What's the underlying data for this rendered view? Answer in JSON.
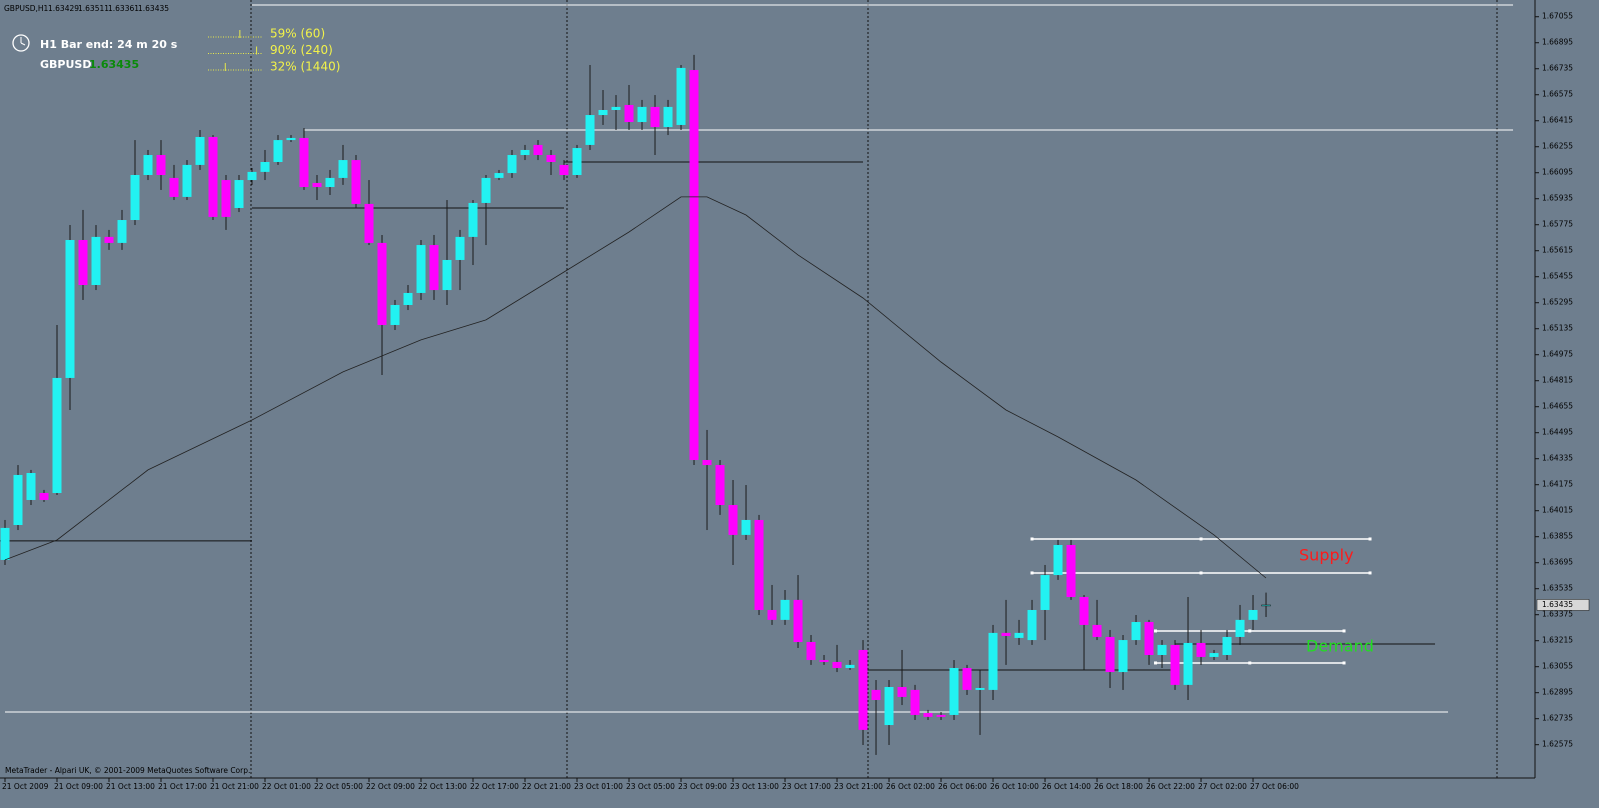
{
  "header": {
    "symbol": "GBPUSD,H1"
  },
  "panel": {
    "bar_end": "H1 Bar end: 24 m 20 s",
    "symbol": "GBPUSD",
    "progress": [
      {
        "value": 59,
        "label": "59% (60)"
      },
      {
        "value": 90,
        "label": "90% (240)"
      },
      {
        "value": 32,
        "label": "32% (1440)"
      }
    ]
  },
  "footer": "MetaTrader - Alpari UK, © 2001-2009 MetaQuotes Software Corp.",
  "chart_data": {
    "type": "candlestick",
    "up_color": "#22f2f2",
    "down_color": "#ff00ff",
    "wick_color": "#1a1a1a",
    "open": [
      1.63712,
      1.63927,
      1.64081,
      1.64124,
      1.64124,
      1.64832,
      1.65681,
      1.65404,
      1.657,
      1.65663,
      1.65804,
      1.66081,
      1.66204,
      1.66063,
      1.65946,
      1.66143,
      1.66315,
      1.6605,
      1.65878,
      1.6605,
      1.661,
      1.66161,
      1.66296,
      1.66309,
      1.66032,
      1.66007,
      1.66063,
      1.66173,
      1.65903,
      1.65663,
      1.65158,
      1.65281,
      1.65355,
      1.6565,
      1.65373,
      1.65558,
      1.657,
      1.65909,
      1.66063,
      1.66093,
      1.66204,
      1.66266,
      1.66204,
      1.66143,
      1.66081,
      1.66266,
      1.6645,
      1.66481,
      1.66512,
      1.66407,
      1.665,
      1.66376,
      1.66389,
      1.66727,
      1.64327,
      1.64296,
      1.6405,
      1.63866,
      1.63958,
      1.63404,
      1.63343,
      1.63466,
      1.63207,
      1.63096,
      1.63084,
      1.63047,
      1.63158,
      1.62912,
      1.62696,
      1.6293,
      1.62912,
      1.6277,
      1.62758,
      1.62758,
      1.63047,
      1.62912,
      1.62912,
      1.63263,
      1.63232,
      1.63219,
      1.63404,
      1.63619,
      1.63804,
      1.63484,
      1.63312,
      1.63238,
      1.63022,
      1.63219,
      1.6333,
      1.63127,
      1.63189,
      1.62943,
      1.63201,
      1.63115,
      1.63127,
      1.63238,
      1.63343,
      1.63429
    ],
    "high": [
      1.63958,
      1.64296,
      1.64266,
      1.64143,
      1.65158,
      1.65773,
      1.65866,
      1.65773,
      1.65743,
      1.65866,
      1.66296,
      1.66235,
      1.66296,
      1.66143,
      1.66173,
      1.66358,
      1.66327,
      1.66081,
      1.66081,
      1.66124,
      1.66235,
      1.66327,
      1.66327,
      1.6637,
      1.66081,
      1.66112,
      1.66266,
      1.66204,
      1.6605,
      1.65712,
      1.65312,
      1.65404,
      1.65681,
      1.65712,
      1.65927,
      1.65743,
      1.65927,
      1.66081,
      1.66112,
      1.66235,
      1.66266,
      1.66296,
      1.66235,
      1.66173,
      1.66266,
      1.66758,
      1.66604,
      1.66573,
      1.66635,
      1.66543,
      1.66573,
      1.66543,
      1.66758,
      1.6682,
      1.64512,
      1.64327,
      1.64204,
      1.64173,
      1.63989,
      1.63558,
      1.63527,
      1.63619,
      1.6325,
      1.63127,
      1.63189,
      1.63096,
      1.63219,
      1.62973,
      1.62973,
      1.63158,
      1.62943,
      1.62789,
      1.62776,
      1.63096,
      1.63066,
      1.63035,
      1.63312,
      1.63466,
      1.63343,
      1.63466,
      1.63681,
      1.63835,
      1.63835,
      1.63496,
      1.63466,
      1.63281,
      1.6325,
      1.63373,
      1.63343,
      1.63219,
      1.63219,
      1.63484,
      1.63281,
      1.63158,
      1.63281,
      1.63435,
      1.63496,
      1.63511
    ],
    "low": [
      1.63681,
      1.63896,
      1.6405,
      1.64069,
      1.64112,
      1.64635,
      1.65312,
      1.65373,
      1.6562,
      1.6562,
      1.65773,
      1.6605,
      1.65989,
      1.65927,
      1.65927,
      1.66112,
      1.65804,
      1.65743,
      1.65853,
      1.6602,
      1.6605,
      1.66143,
      1.66284,
      1.65989,
      1.65927,
      1.65958,
      1.6602,
      1.65878,
      1.6565,
      1.6485,
      1.65127,
      1.6525,
      1.65312,
      1.65312,
      1.65281,
      1.65373,
      1.65527,
      1.6565,
      1.6605,
      1.66063,
      1.66173,
      1.66173,
      1.66081,
      1.6605,
      1.66063,
      1.66235,
      1.66389,
      1.66358,
      1.66358,
      1.66358,
      1.66204,
      1.66327,
      1.66358,
      1.64296,
      1.63896,
      1.63989,
      1.63681,
      1.63835,
      1.63373,
      1.63312,
      1.63312,
      1.6317,
      1.63066,
      1.63066,
      1.63022,
      1.63035,
      1.62573,
      1.62512,
      1.62573,
      1.62819,
      1.62727,
      1.62727,
      1.62727,
      1.62727,
      1.62881,
      1.62635,
      1.6285,
      1.63066,
      1.63189,
      1.63189,
      1.63219,
      1.63589,
      1.63466,
      1.63035,
      1.63219,
      1.62924,
      1.62912,
      1.63189,
      1.63066,
      1.63047,
      1.62912,
      1.6285,
      1.63066,
      1.63096,
      1.63096,
      1.63189,
      1.63281,
      1.63361
    ],
    "close": [
      1.63909,
      1.64235,
      1.64247,
      1.64081,
      1.64832,
      1.65681,
      1.65404,
      1.657,
      1.65663,
      1.65804,
      1.66081,
      1.66204,
      1.66081,
      1.65946,
      1.66143,
      1.66315,
      1.65823,
      1.65823,
      1.6605,
      1.661,
      1.66161,
      1.66296,
      1.66309,
      1.66007,
      1.66007,
      1.66063,
      1.66173,
      1.65903,
      1.65663,
      1.65158,
      1.65281,
      1.65355,
      1.6565,
      1.65373,
      1.65558,
      1.657,
      1.65909,
      1.66063,
      1.66093,
      1.66204,
      1.66235,
      1.66204,
      1.66161,
      1.66081,
      1.66247,
      1.6645,
      1.66481,
      1.665,
      1.66407,
      1.665,
      1.66376,
      1.665,
      1.6674,
      1.64327,
      1.64296,
      1.6405,
      1.63866,
      1.63958,
      1.63404,
      1.63343,
      1.63466,
      1.63207,
      1.63096,
      1.63084,
      1.63047,
      1.63066,
      1.62666,
      1.6285,
      1.6293,
      1.62869,
      1.62758,
      1.62746,
      1.62746,
      1.63047,
      1.62912,
      1.62924,
      1.63263,
      1.63244,
      1.63263,
      1.63404,
      1.63619,
      1.63804,
      1.63484,
      1.63312,
      1.63238,
      1.63022,
      1.63219,
      1.6333,
      1.63127,
      1.63189,
      1.62943,
      1.63201,
      1.63115,
      1.63139,
      1.63238,
      1.63343,
      1.63404,
      1.63435
    ],
    "xlim": [
      -0.385,
      117.69
    ],
    "ylim": [
      1.6237,
      1.67158
    ],
    "yticks": [
      1.67055,
      1.66895,
      1.66735,
      1.66575,
      1.66415,
      1.66255,
      1.66095,
      1.65935,
      1.65775,
      1.65615,
      1.65455,
      1.65295,
      1.65135,
      1.64975,
      1.64815,
      1.64655,
      1.64495,
      1.64335,
      1.64175,
      1.64015,
      1.63855,
      1.63695,
      1.63535,
      1.63375,
      1.63215,
      1.63055,
      1.62895,
      1.62735,
      1.62575
    ],
    "xticks": [
      {
        "value": 0,
        "label": "21 Oct 2009"
      },
      {
        "value": 4,
        "label": "21 Oct 09:00"
      },
      {
        "value": 8,
        "label": "21 Oct 13:00"
      },
      {
        "value": 12,
        "label": "21 Oct 17:00"
      },
      {
        "value": 16,
        "label": "21 Oct 21:00"
      },
      {
        "value": 20,
        "label": "22 Oct 01:00"
      },
      {
        "value": 24,
        "label": "22 Oct 05:00"
      },
      {
        "value": 28,
        "label": "22 Oct 09:00"
      },
      {
        "value": 32,
        "label": "22 Oct 13:00"
      },
      {
        "value": 36,
        "label": "22 Oct 17:00"
      },
      {
        "value": 40,
        "label": "22 Oct 21:00"
      },
      {
        "value": 44,
        "label": "23 Oct 01:00"
      },
      {
        "value": 48,
        "label": "23 Oct 05:00"
      },
      {
        "value": 52,
        "label": "23 Oct 09:00"
      },
      {
        "value": 56,
        "label": "23 Oct 13:00"
      },
      {
        "value": 60,
        "label": "23 Oct 17:00"
      },
      {
        "value": 64,
        "label": "23 Oct 21:00"
      },
      {
        "value": 68,
        "label": "26 Oct 02:00"
      },
      {
        "value": 72,
        "label": "26 Oct 06:00"
      },
      {
        "value": 76,
        "label": "26 Oct 10:00"
      },
      {
        "value": 80,
        "label": "26 Oct 14:00"
      },
      {
        "value": 84,
        "label": "26 Oct 18:00"
      },
      {
        "value": 88,
        "label": "26 Oct 22:00"
      },
      {
        "value": 92,
        "label": "27 Oct 02:00"
      },
      {
        "value": 96,
        "label": "27 Oct 06:00"
      }
    ],
    "ma": {
      "color": "#222222",
      "x": [
        0,
        4,
        11,
        19,
        26,
        32,
        37,
        43,
        48,
        52,
        54,
        57,
        61,
        66,
        72,
        77,
        81,
        87,
        93,
        97
      ],
      "values": [
        1.63712,
        1.63835,
        1.64266,
        1.64573,
        1.64869,
        1.65066,
        1.65189,
        1.65484,
        1.6573,
        1.65946,
        1.65946,
        1.65835,
        1.65589,
        1.65324,
        1.6493,
        1.64635,
        1.64469,
        1.64204,
        1.63866,
        1.63601
      ]
    },
    "levels": [
      {
        "value": 1.67127,
        "from": 19,
        "to": 116,
        "color": "#ffffff"
      },
      {
        "value": 1.66358,
        "from": 23,
        "to": 116,
        "color": "#ffffff"
      },
      {
        "value": 1.62776,
        "from": 0,
        "to": 111,
        "color": "#ffffff"
      },
      {
        "value": 1.63829,
        "from": -0.4,
        "to": 19,
        "color": "#111111"
      },
      {
        "value": 1.65878,
        "from": 19,
        "to": 43,
        "color": "#111111"
      },
      {
        "value": 1.66161,
        "from": 43,
        "to": 66,
        "color": "#111111"
      },
      {
        "value": 1.63035,
        "from": 66,
        "to": 90,
        "color": "#111111"
      },
      {
        "value": 1.63195,
        "from": 90,
        "to": 110,
        "color": "#111111"
      }
    ],
    "zones": [
      {
        "name": "Supply",
        "color": "#ff1a1a",
        "values": [
          1.63841,
          1.63632
        ],
        "from": 79,
        "to": 105
      },
      {
        "name": "Demand",
        "color": "#22dd22",
        "values": [
          1.63275,
          1.63078
        ],
        "from": 88.5,
        "to": 103
      }
    ]
  }
}
